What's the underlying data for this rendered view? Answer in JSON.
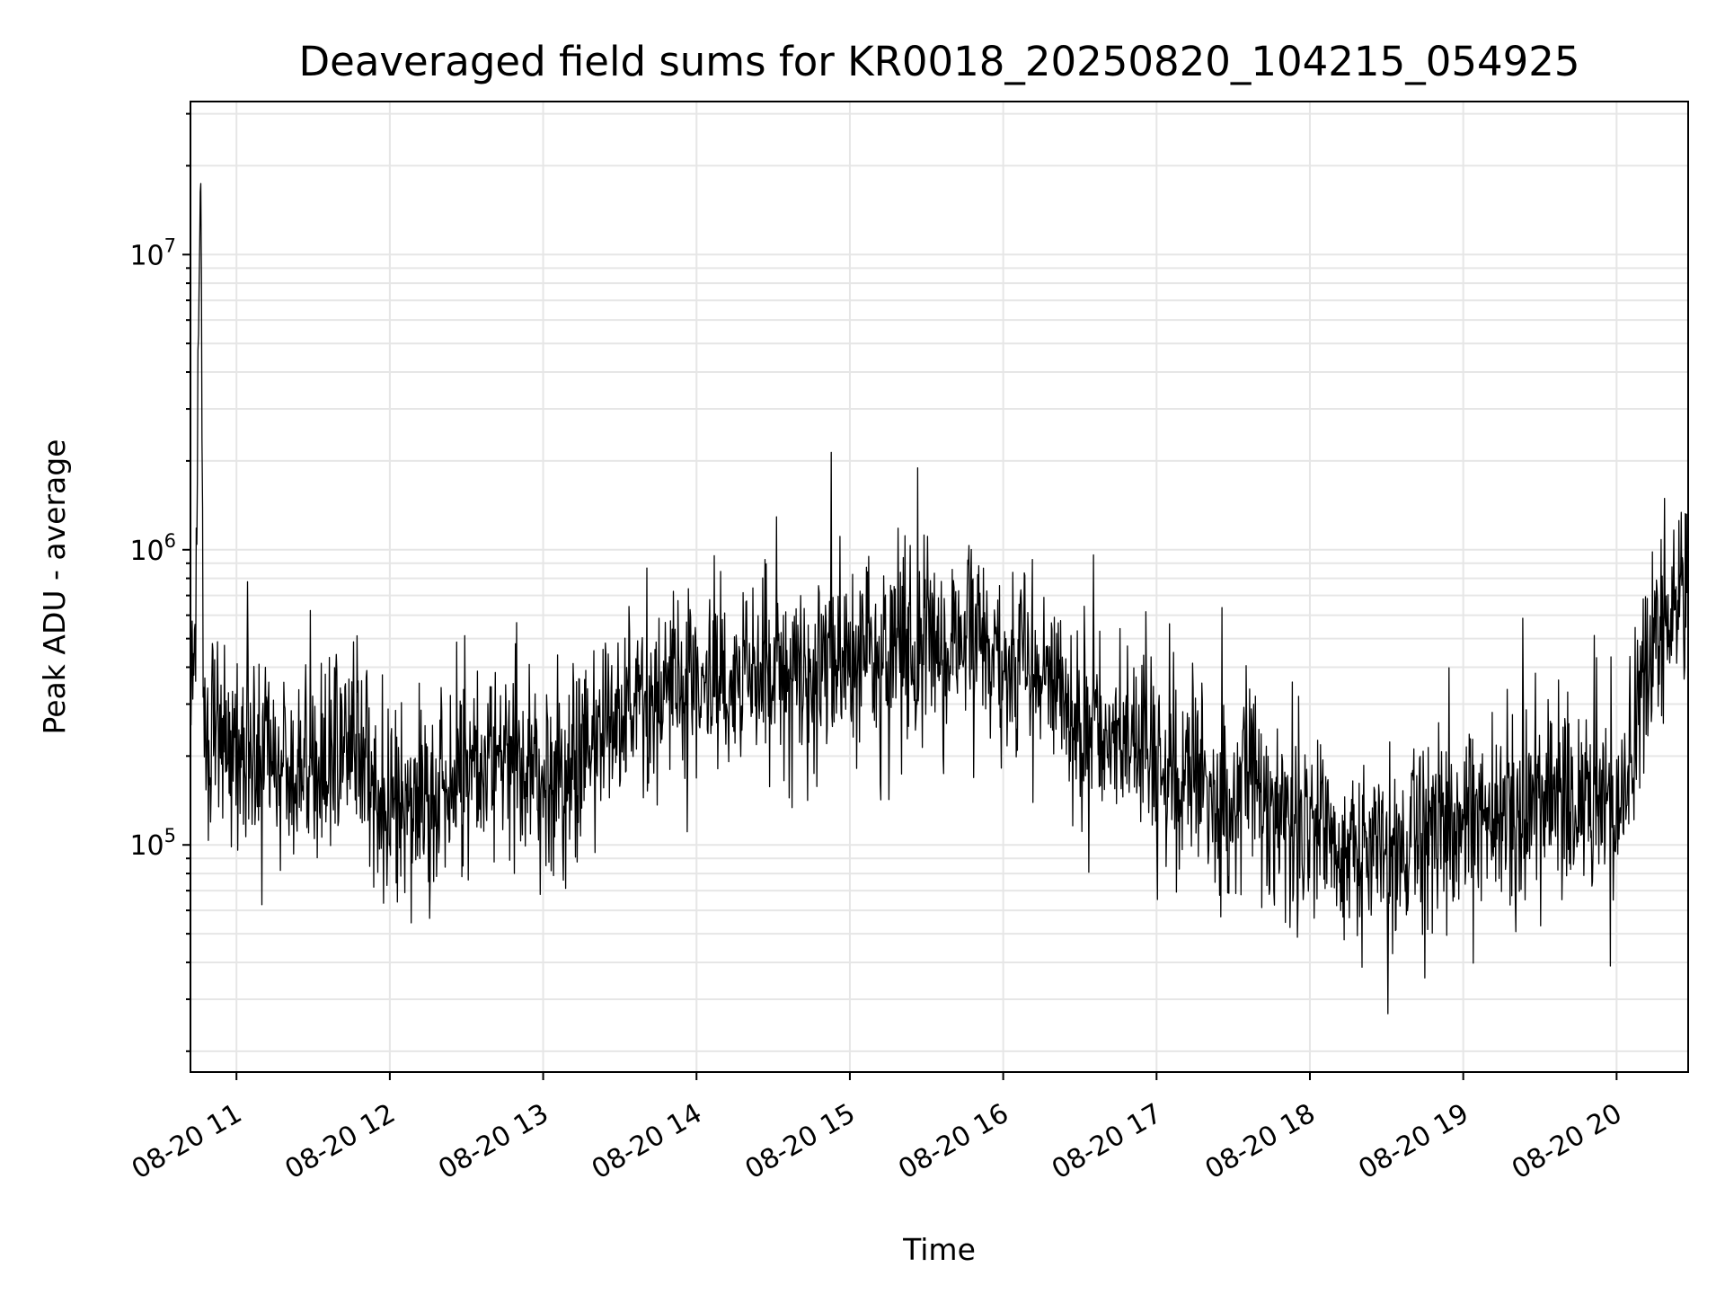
{
  "chart_data": {
    "type": "line",
    "title": "Deaveraged field sums for KR0018_20250820_104215_054925",
    "xlabel": "Time",
    "ylabel": "Peak ADU - average",
    "y_scale": "log",
    "ylim": [
      17000,
      33000000
    ],
    "xlim": [
      "2025-08-20 10:42",
      "2025-08-20 20:28"
    ],
    "x_ticks": [
      "08-20 11",
      "08-20 12",
      "08-20 13",
      "08-20 14",
      "08-20 15",
      "08-20 16",
      "08-20 17",
      "08-20 18",
      "08-20 19",
      "08-20 20"
    ],
    "y_ticks": [
      {
        "value": 100000,
        "base": "10",
        "exp": "5"
      },
      {
        "value": 1000000,
        "base": "10",
        "exp": "6"
      },
      {
        "value": 10000000,
        "base": "10",
        "exp": "7"
      }
    ],
    "grid": true,
    "line_color": "#000000",
    "grid_color": "#e6e6e6",
    "series": [
      {
        "x": [
          "2025-08-20 10:42",
          "2025-08-20 10:44",
          "2025-08-20 10:46",
          "2025-08-20 10:47",
          "2025-08-20 10:48",
          "2025-08-20 10:50",
          "2025-08-20 10:55",
          "2025-08-20 11:00",
          "2025-08-20 11:10",
          "2025-08-20 11:15",
          "2025-08-20 11:20",
          "2025-08-20 11:30",
          "2025-08-20 11:40",
          "2025-08-20 11:45",
          "2025-08-20 11:50",
          "2025-08-20 12:00",
          "2025-08-20 12:10",
          "2025-08-20 12:15",
          "2025-08-20 12:30",
          "2025-08-20 12:40",
          "2025-08-20 12:45",
          "2025-08-20 13:00",
          "2025-08-20 13:10",
          "2025-08-20 13:20",
          "2025-08-20 13:30",
          "2025-08-20 13:45",
          "2025-08-20 14:00",
          "2025-08-20 14:15",
          "2025-08-20 14:30",
          "2025-08-20 14:45",
          "2025-08-20 15:00",
          "2025-08-20 15:15",
          "2025-08-20 15:30",
          "2025-08-20 15:45",
          "2025-08-20 16:00",
          "2025-08-20 16:15",
          "2025-08-20 16:30",
          "2025-08-20 16:45",
          "2025-08-20 17:00",
          "2025-08-20 17:15",
          "2025-08-20 17:30",
          "2025-08-20 17:36",
          "2025-08-20 17:40",
          "2025-08-20 17:50",
          "2025-08-20 18:00",
          "2025-08-20 18:15",
          "2025-08-20 18:30",
          "2025-08-20 18:45",
          "2025-08-20 19:00",
          "2025-08-20 19:15",
          "2025-08-20 19:30",
          "2025-08-20 19:45",
          "2025-08-20 20:00",
          "2025-08-20 20:10",
          "2025-08-20 20:15",
          "2025-08-20 20:20",
          "2025-08-20 20:28"
        ],
        "values": [
          300000,
          600000,
          22000000,
          400000,
          260000,
          250000,
          230000,
          210000,
          200000,
          190000,
          180000,
          180000,
          190000,
          250000,
          180000,
          140000,
          140000,
          140000,
          170000,
          200000,
          220000,
          180000,
          180000,
          230000,
          280000,
          320000,
          330000,
          360000,
          380000,
          390000,
          400000,
          480000,
          520000,
          520000,
          450000,
          380000,
          280000,
          230000,
          200000,
          160000,
          130000,
          200000,
          150000,
          120000,
          110000,
          95000,
          100000,
          105000,
          120000,
          140000,
          145000,
          150000,
          110000,
          350000,
          500000,
          650000,
          650000
        ]
      }
    ]
  }
}
